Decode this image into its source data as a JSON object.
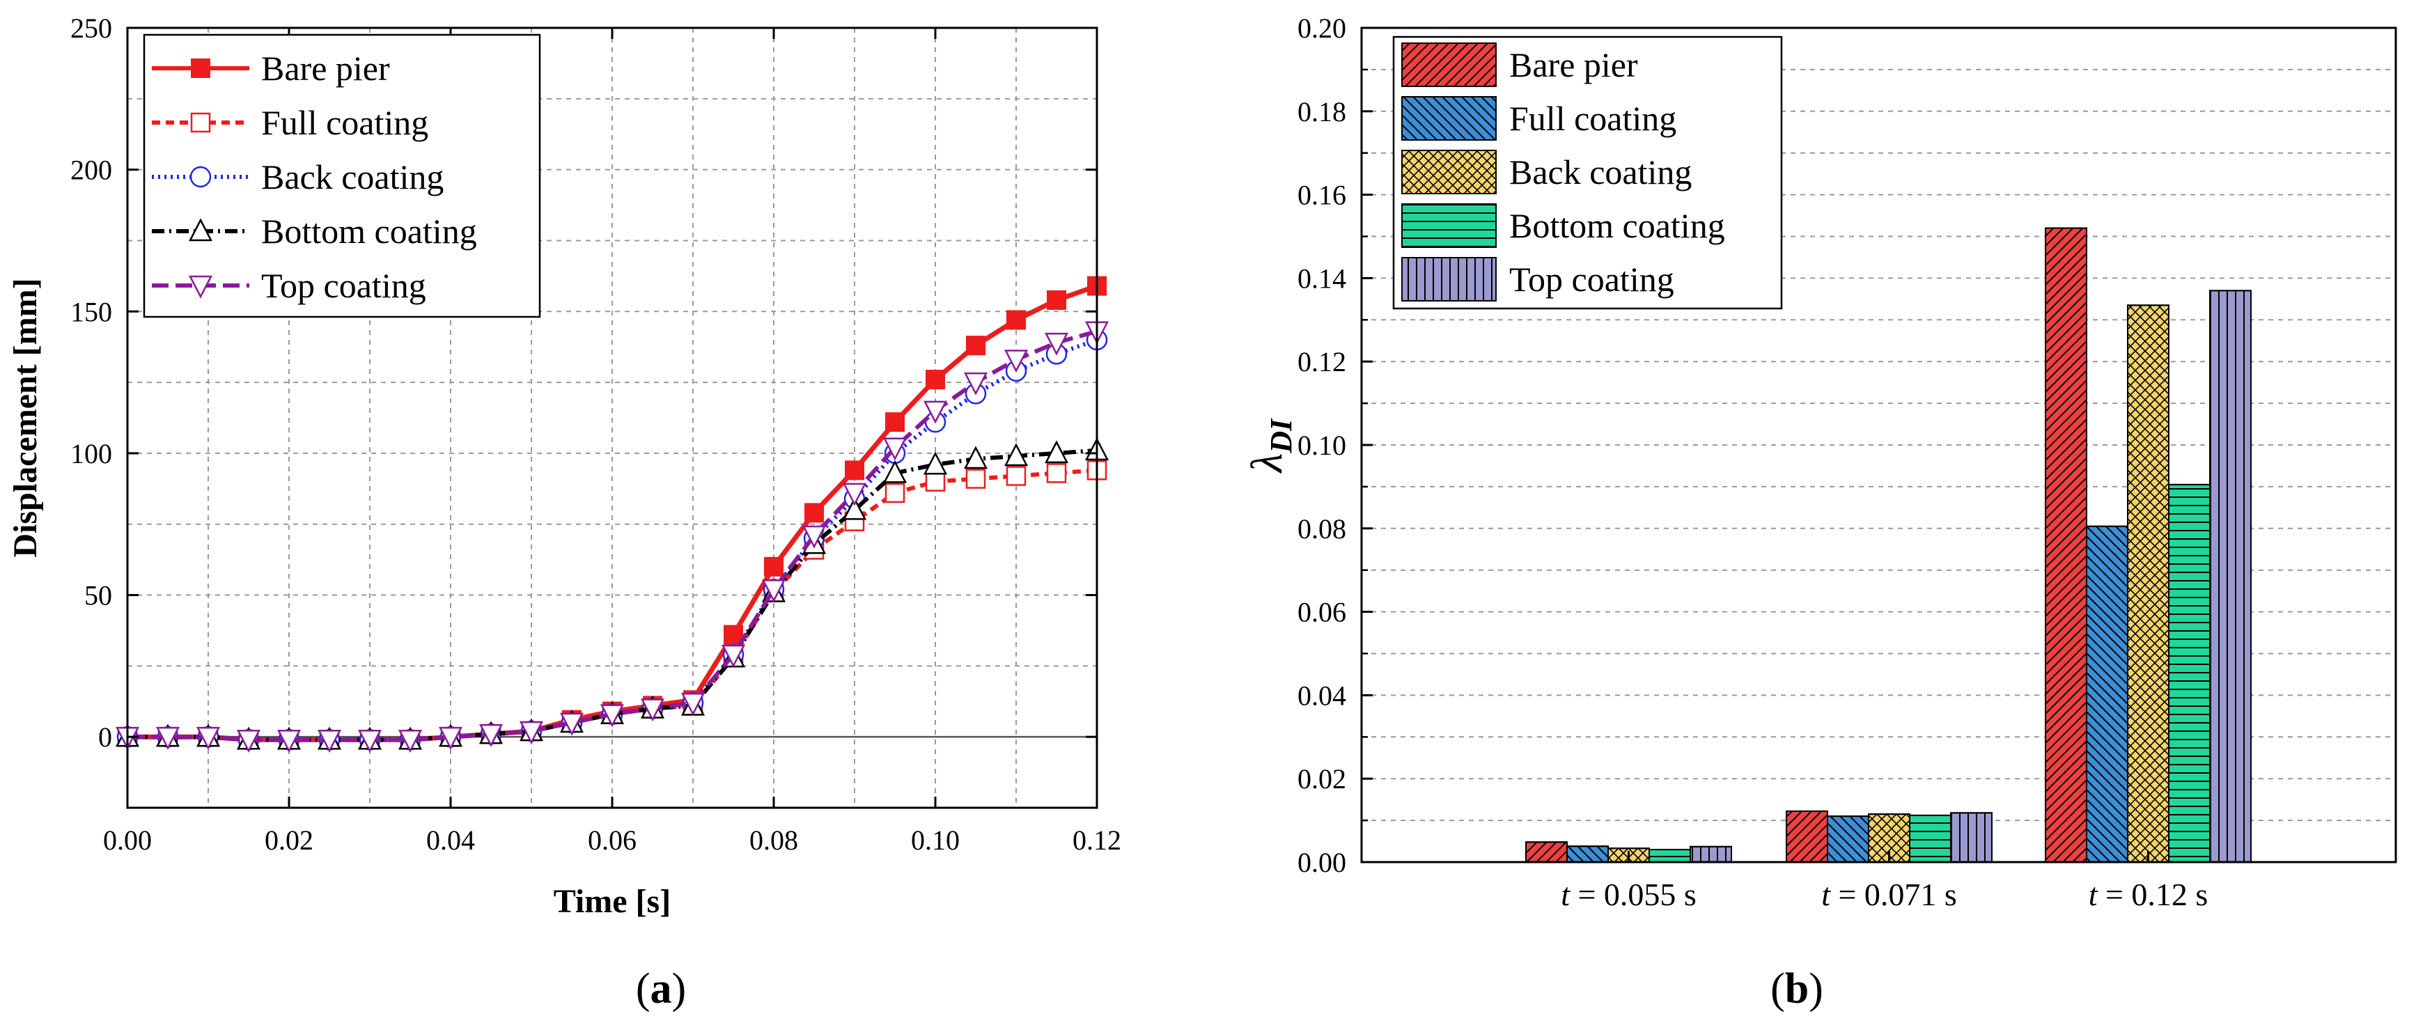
{
  "chart_data": [
    {
      "type": "line",
      "panel_label": "a",
      "xlabel": "Time [s]",
      "ylabel": "Displacement [mm]",
      "xlim": [
        0,
        0.12
      ],
      "ylim": [
        -25,
        250
      ],
      "xticks": [
        "0.00",
        "0.02",
        "0.04",
        "0.06",
        "0.08",
        "0.10",
        "0.12"
      ],
      "yticks": [
        "0",
        "50",
        "100",
        "150",
        "200",
        "250"
      ],
      "legend_position": "top-left",
      "x": [
        0,
        0.005,
        0.01,
        0.015,
        0.02,
        0.025,
        0.03,
        0.035,
        0.04,
        0.045,
        0.05,
        0.055,
        0.06,
        0.065,
        0.07,
        0.075,
        0.08,
        0.085,
        0.09,
        0.095,
        0.1,
        0.105,
        0.11,
        0.115,
        0.12
      ],
      "series": [
        {
          "name": "Bare pier",
          "color": "#ee1c1c",
          "marker": "square-filled",
          "dash": "",
          "values": [
            0,
            0,
            0,
            -1,
            -1,
            -1,
            -1,
            -1,
            0,
            1,
            2,
            6,
            9,
            11,
            13,
            36,
            60,
            79,
            94,
            111,
            126,
            138,
            147,
            154,
            159
          ]
        },
        {
          "name": "Full coating",
          "color": "#ee1c1c",
          "marker": "square-open",
          "dash": "12 8",
          "values": [
            0,
            0,
            0,
            -1,
            -1,
            -1,
            -1,
            -1,
            0,
            1,
            2,
            5,
            8,
            10,
            11,
            28,
            51,
            66,
            76,
            86,
            90,
            91,
            92,
            93,
            94
          ]
        },
        {
          "name": "Back coating",
          "color": "#1f28e6",
          "marker": "circle-open",
          "dash": "3 6",
          "values": [
            0,
            0,
            0,
            -1,
            -1,
            -1,
            -1,
            -1,
            0,
            1,
            2,
            5,
            8,
            10,
            12,
            29,
            52,
            70,
            84,
            100,
            111,
            121,
            129,
            135,
            140
          ]
        },
        {
          "name": "Bottom coating",
          "color": "#000000",
          "marker": "triangle-up-open",
          "dash": "18 7 3 7",
          "values": [
            0,
            0,
            0,
            -1,
            -1,
            -1,
            -1,
            -1,
            0,
            1,
            2,
            5,
            8,
            10,
            11,
            28,
            51,
            68,
            80,
            93,
            96,
            98,
            99,
            100,
            101
          ]
        },
        {
          "name": "Top coating",
          "color": "#8a1a9b",
          "marker": "triangle-down-open",
          "dash": "24 10",
          "values": [
            0,
            0,
            0,
            -1,
            -1,
            -1,
            -1,
            -1,
            0,
            1,
            2,
            5,
            8,
            10,
            12,
            29,
            52,
            71,
            86,
            102,
            115,
            125,
            133,
            139,
            143
          ]
        }
      ]
    },
    {
      "type": "bar",
      "panel_label": "b",
      "ylabel": "λ",
      "ylabel_sub": "DI",
      "ylim": [
        0,
        0.2
      ],
      "yticks": [
        "0.00",
        "0.02",
        "0.04",
        "0.06",
        "0.08",
        "0.10",
        "0.12",
        "0.14",
        "0.16",
        "0.18",
        "0.20"
      ],
      "legend_position": "top-left",
      "categories": [
        {
          "var": "t",
          "rest": " = 0.055 s"
        },
        {
          "var": "t",
          "rest": " = 0.071 s"
        },
        {
          "var": "t",
          "rest": " = 0.12 s"
        }
      ],
      "series": [
        {
          "name": "Bare pier",
          "color": "#ef4040",
          "pattern": "diag-right",
          "values": [
            0.0048,
            0.0122,
            0.152
          ]
        },
        {
          "name": "Full coating",
          "color": "#3a8fd6",
          "pattern": "diag-left",
          "values": [
            0.0038,
            0.011,
            0.0805
          ]
        },
        {
          "name": "Back coating",
          "color": "#f3d46a",
          "pattern": "cross",
          "values": [
            0.0033,
            0.0115,
            0.1335
          ]
        },
        {
          "name": "Bottom coating",
          "color": "#20d79a",
          "pattern": "horizontal",
          "values": [
            0.003,
            0.0112,
            0.0905
          ]
        },
        {
          "name": "Top coating",
          "color": "#9a9ad0",
          "pattern": "vertical",
          "values": [
            0.0037,
            0.0118,
            0.137
          ]
        }
      ]
    }
  ]
}
